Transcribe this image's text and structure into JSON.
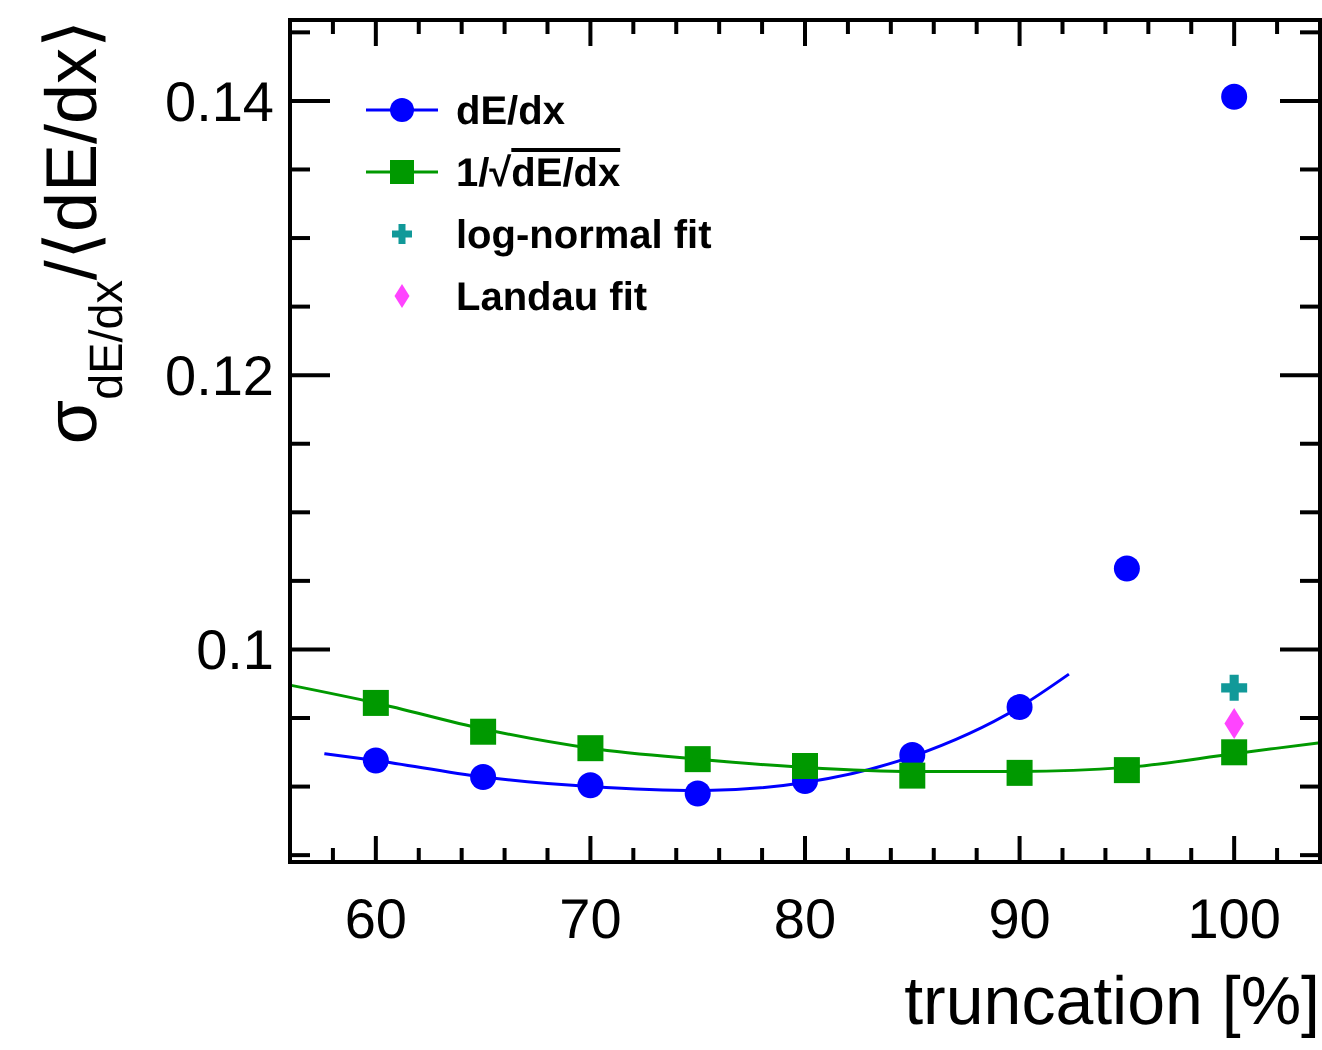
{
  "chart_data": {
    "type": "scatter",
    "xlabel": "truncation [%]",
    "ylabel": "σ$_{dE/dx}$/⟨dE/dx⟩",
    "xlim": [
      56,
      104
    ],
    "xticks": [
      {
        "value": 56,
        "label": null
      },
      {
        "value": 58,
        "label": null
      },
      60,
      {
        "value": 62,
        "label": null
      },
      {
        "value": 64,
        "label": null
      },
      {
        "value": 66,
        "label": null
      },
      {
        "value": 68,
        "label": null
      },
      70,
      {
        "value": 72,
        "label": null
      },
      {
        "value": 74,
        "label": null
      },
      {
        "value": 76,
        "label": null
      },
      {
        "value": 78,
        "label": null
      },
      80,
      {
        "value": 82,
        "label": null
      },
      {
        "value": 84,
        "label": null
      },
      {
        "value": 86,
        "label": null
      },
      {
        "value": 88,
        "label": null
      },
      90,
      {
        "value": 92,
        "label": null
      },
      {
        "value": 94,
        "label": null
      },
      {
        "value": 96,
        "label": null
      },
      {
        "value": 98,
        "label": null
      },
      100,
      {
        "value": 102,
        "label": null
      },
      {
        "value": 104,
        "label": null
      }
    ],
    "ylim": [
      0.0845,
      0.1459
    ],
    "yticks": [
      {
        "value": 0.085,
        "label": null
      },
      {
        "value": 0.09,
        "label": null
      },
      {
        "value": 0.095,
        "label": null
      },
      0.1,
      {
        "value": 0.105,
        "label": null
      },
      {
        "value": 0.11,
        "label": null
      },
      {
        "value": 0.115,
        "label": null
      },
      0.12,
      {
        "value": 0.125,
        "label": null
      },
      {
        "value": 0.13,
        "label": null
      },
      {
        "value": 0.135,
        "label": null
      },
      0.14,
      {
        "value": 0.145,
        "label": null
      }
    ],
    "legend": "top left",
    "grid": false,
    "series": [
      {
        "name": "dE/dx",
        "marker": "circle",
        "color": "#0000ff",
        "x": [
          60,
          65,
          70,
          75,
          80,
          85,
          90,
          95,
          100
        ],
        "values": [
          0.0919,
          0.0907,
          0.0901,
          0.0895,
          0.0904,
          0.0923,
          0.0958,
          0.1059,
          0.1403
        ]
      },
      {
        "name": "1/√dE/dx",
        "marker": "square",
        "color": "#009900",
        "x": [
          60,
          65,
          70,
          75,
          80,
          85,
          90,
          95,
          100
        ],
        "values": [
          0.0961,
          0.094,
          0.0928,
          0.092,
          0.0915,
          0.0908,
          0.091,
          0.0912,
          0.0925
        ]
      },
      {
        "name": "log-normal fit",
        "marker": "cross",
        "color": "#119999",
        "x": [
          100
        ],
        "values": [
          0.0972
        ]
      },
      {
        "name": "Landau fit",
        "marker": "diamond",
        "color": "#ff44ff",
        "x": [
          100
        ],
        "values": [
          0.0946
        ]
      },
      {
        "type": "line",
        "marker": "none",
        "color": "#0000ff",
        "x": [
          57.6,
          60,
          65,
          70,
          75,
          80,
          85,
          90,
          92.3
        ],
        "values": [
          0.0924,
          0.0919,
          0.0907,
          0.09,
          0.0897,
          0.0903,
          0.0922,
          0.0958,
          0.0982
        ]
      },
      {
        "type": "line",
        "marker": "none",
        "color": "#009900",
        "x": [
          56,
          60,
          65,
          70,
          75,
          80,
          85,
          90,
          95,
          100,
          104
        ],
        "values": [
          0.0974,
          0.0961,
          0.0942,
          0.0928,
          0.092,
          0.0914,
          0.0911,
          0.0911,
          0.0914,
          0.0924,
          0.0932
        ]
      }
    ]
  }
}
